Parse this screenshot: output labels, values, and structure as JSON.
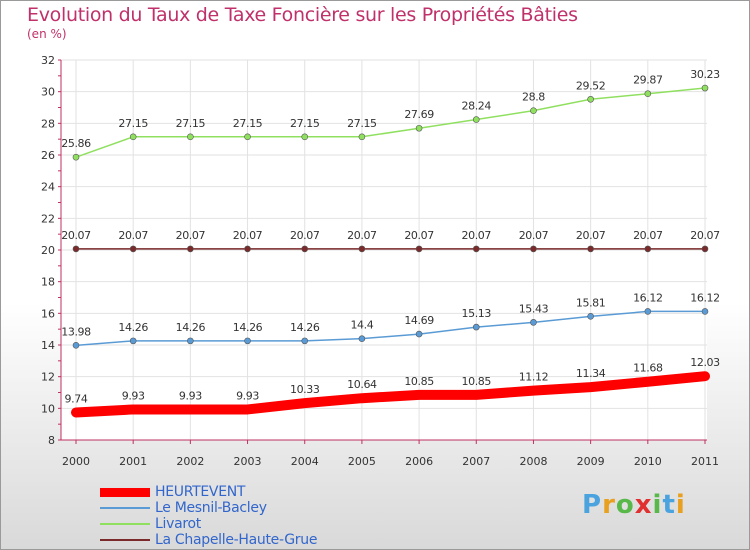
{
  "chart_data": {
    "type": "line",
    "title": "Evolution du Taux de Taxe Foncière sur les Propriétés Bâties",
    "subtitle": "(en %)",
    "xlabel": "",
    "ylabel": "",
    "categories": [
      "2000",
      "2001",
      "2002",
      "2003",
      "2004",
      "2005",
      "2006",
      "2007",
      "2008",
      "2009",
      "2010",
      "2011"
    ],
    "ylim": [
      8,
      32
    ],
    "yticks": [
      8,
      10,
      12,
      14,
      16,
      18,
      20,
      22,
      24,
      26,
      28,
      30,
      32
    ],
    "grid": true,
    "legend_position": "bottom-left",
    "series": [
      {
        "name": "HEURTEVENT",
        "color": "#ff0000",
        "emphasis": true,
        "values": [
          9.74,
          9.93,
          9.93,
          9.93,
          10.33,
          10.64,
          10.85,
          10.85,
          11.12,
          11.34,
          11.68,
          12.03
        ],
        "labels": [
          "9.74",
          "9.93",
          "9.93",
          "9.93",
          "10.33",
          "10.64",
          "10.85",
          "10.85",
          "11.12",
          "11.34",
          "11.68",
          "12.03"
        ]
      },
      {
        "name": "Le Mesnil-Bacley",
        "color": "#5a9bd5",
        "values": [
          13.98,
          14.26,
          14.26,
          14.26,
          14.26,
          14.4,
          14.69,
          15.13,
          15.43,
          15.81,
          16.12,
          16.12
        ],
        "labels": [
          "13.98",
          "14.26",
          "14.26",
          "14.26",
          "14.26",
          "14.4",
          "14.69",
          "15.13",
          "15.43",
          "15.81",
          "16.12",
          "16.12"
        ]
      },
      {
        "name": "Livarot",
        "color": "#90e060",
        "values": [
          25.86,
          27.15,
          27.15,
          27.15,
          27.15,
          27.15,
          27.69,
          28.24,
          28.8,
          29.52,
          29.87,
          30.23
        ],
        "labels": [
          "25.86",
          "27.15",
          "27.15",
          "27.15",
          "27.15",
          "27.15",
          "27.69",
          "28.24",
          "28.8",
          "29.52",
          "29.87",
          "30.23"
        ]
      },
      {
        "name": "La Chapelle-Haute-Grue",
        "color": "#7a2a2a",
        "values": [
          20.07,
          20.07,
          20.07,
          20.07,
          20.07,
          20.07,
          20.07,
          20.07,
          20.07,
          20.07,
          20.07,
          20.07
        ],
        "labels": [
          "20.07",
          "20.07",
          "20.07",
          "20.07",
          "20.07",
          "20.07",
          "20.07",
          "20.07",
          "20.07",
          "20.07",
          "20.07",
          "20.07"
        ]
      }
    ]
  },
  "branding": {
    "logo_text": "Proxiti",
    "logo_letters": [
      "P",
      "r",
      "o",
      "x",
      "i",
      "t",
      "i"
    ],
    "logo_colors": [
      "#4aa3df",
      "#e8a020",
      "#58b84a",
      "#e03030",
      "#58b84a",
      "#4aa3df",
      "#e8a020"
    ]
  }
}
